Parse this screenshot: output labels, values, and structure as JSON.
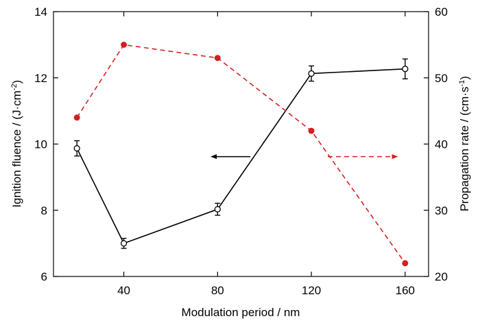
{
  "chart_data": {
    "type": "line",
    "xlabel": "Modulation period / nm",
    "ylabel_left": {
      "main": "Ignition fluence / (J·cm",
      "sup": "-2",
      "end": ")"
    },
    "ylabel_right": {
      "main": "Propagation rate / (cm·s",
      "sup": "-1",
      "end": ")"
    },
    "x_ticks": [
      40,
      80,
      120,
      160
    ],
    "xlim": [
      10,
      170
    ],
    "y_left_ticks": [
      6,
      8,
      10,
      12,
      14
    ],
    "y_left_lim": [
      6,
      14
    ],
    "y_right_ticks": [
      20,
      30,
      40,
      50,
      60
    ],
    "y_right_lim": [
      20,
      60
    ],
    "grid": false,
    "series": [
      {
        "axis": "left",
        "color": "#000000",
        "line_style": "solid",
        "marker": "open-circle",
        "x": [
          20,
          40,
          80,
          120,
          160
        ],
        "y": [
          9.87,
          7.0,
          8.03,
          12.13,
          12.27
        ],
        "error": [
          0.23,
          0.15,
          0.18,
          0.23,
          0.3
        ]
      },
      {
        "axis": "right",
        "color": "#d42020",
        "line_style": "dashed",
        "marker": "filled-circle",
        "x": [
          20,
          40,
          80,
          120,
          160
        ],
        "y": [
          44,
          55,
          53,
          42,
          22
        ]
      }
    ],
    "arrows": [
      {
        "points_to": "left",
        "color": "#000000",
        "line_style": "solid",
        "x": [
          94,
          77
        ],
        "y_left": 9.62
      },
      {
        "points_to": "right",
        "color": "#d42020",
        "line_style": "dashed",
        "x": [
          127,
          157
        ],
        "y_left": 9.62
      }
    ]
  }
}
